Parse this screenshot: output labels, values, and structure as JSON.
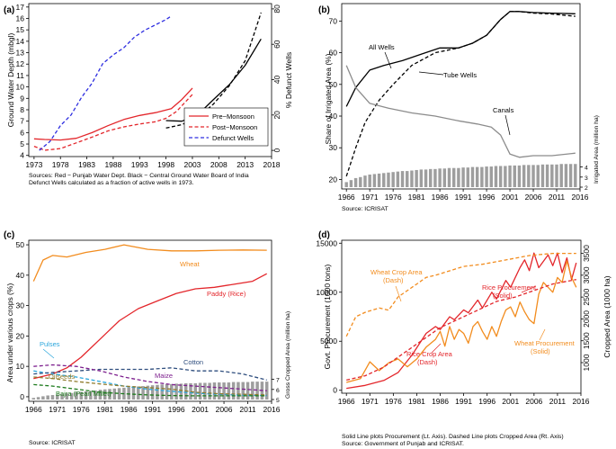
{
  "chart_data": [
    {
      "panel": "(a)",
      "type": "line",
      "xlabel": "",
      "ylabel": "Ground Water Depth (mbgl)",
      "y2label": "% Defunct Wells",
      "xticks": [
        1973,
        1978,
        1983,
        1988,
        1993,
        1998,
        2003,
        2008,
        2013,
        2018
      ],
      "yticks": [
        4,
        5,
        6,
        7,
        8,
        9,
        10,
        11,
        12,
        13,
        14,
        15,
        16,
        17
      ],
      "y2ticks": [
        0,
        20,
        40,
        60,
        80
      ],
      "xlim": [
        1972,
        2018
      ],
      "ylim": [
        3.9,
        17.3
      ],
      "y2lim": [
        -3.5,
        83
      ],
      "legend": [
        "Pre−Monsoon",
        "Post−Monsoon",
        "Defunct Wells"
      ],
      "notes": [
        "Sources: Red − Punjab Water Dept. Black − Central Ground Water Board of India",
        "Defunct Wells calculated as a fraction of active wells in 1973."
      ],
      "series": [
        {
          "name": "Pre−Monsoon",
          "axis": "left",
          "color": "#e3262b",
          "dash": "solid",
          "x": [
            1973,
            1975,
            1978,
            1981,
            1984,
            1987,
            1990,
            1993,
            1996,
            1999,
            2001,
            2003
          ],
          "y": [
            5.45,
            5.4,
            5.35,
            5.5,
            6.0,
            6.6,
            7.15,
            7.5,
            7.75,
            8.1,
            8.9,
            9.9
          ]
        },
        {
          "name": "Post−Monsoon",
          "axis": "left",
          "color": "#e3262b",
          "dash": "dashed",
          "x": [
            1973,
            1975,
            1978,
            1981,
            1984,
            1987,
            1990,
            1993,
            1996,
            1998,
            2000,
            2003
          ],
          "y": [
            4.8,
            4.45,
            4.6,
            5.1,
            5.6,
            6.15,
            6.5,
            6.75,
            6.95,
            7.25,
            7.85,
            9.35
          ]
        },
        {
          "name": "Defunct Wells",
          "axis": "right",
          "color": "#2d2de0",
          "dash": "dashed",
          "x": [
            1974,
            1976,
            1978,
            1980,
            1982,
            1984,
            1986,
            1988,
            1990,
            1992,
            1994,
            1996,
            1998,
            1999
          ],
          "y": [
            0,
            5,
            14,
            20,
            30,
            38,
            49,
            54,
            58,
            64,
            68,
            71,
            74,
            76
          ]
        },
        {
          "name": "CGWB Pre",
          "axis": "left",
          "color": "#000000",
          "dash": "solid",
          "x": [
            1998,
            2001,
            2004,
            2007,
            2010,
            2013,
            2016
          ],
          "y": [
            7.05,
            7.0,
            7.55,
            8.9,
            10.2,
            11.9,
            14.2
          ]
        },
        {
          "name": "CGWB Post",
          "axis": "left",
          "color": "#000000",
          "dash": "dashed",
          "x": [
            1998,
            2001,
            2004,
            2007,
            2010,
            2013,
            2016
          ],
          "y": [
            6.4,
            6.7,
            7.3,
            8.5,
            10.1,
            12.3,
            16.5
          ]
        }
      ]
    },
    {
      "panel": "(b)",
      "type": "line",
      "ylabel": "Share of Irrigated Area (%)",
      "y2label": "Irrigated Area (million ha)",
      "xticks": [
        1966,
        1971,
        1976,
        1981,
        1986,
        1991,
        1996,
        2001,
        2006,
        2011,
        2016
      ],
      "yticks": [
        20,
        30,
        40,
        50,
        60,
        70
      ],
      "y2ticks": [
        2,
        3,
        4
      ],
      "xlim": [
        1965,
        2016
      ],
      "ylim": [
        17,
        75.5
      ],
      "y2lim": [
        1.6,
        4.1
      ],
      "annotations": [
        "All Wells",
        "Tube Wells",
        "Canals"
      ],
      "source": "Source: ICRISAT",
      "series": [
        {
          "name": "All Wells",
          "color": "#000000",
          "dash": "solid",
          "x": [
            1966,
            1968,
            1971,
            1974,
            1978,
            1982,
            1986,
            1990,
            1993,
            1996,
            1999,
            2001,
            2003,
            2006,
            2010,
            2015
          ],
          "y": [
            43,
            49,
            54.5,
            56,
            57.5,
            59.5,
            61.5,
            61.5,
            63,
            65.5,
            70.5,
            73,
            73,
            72.7,
            72.5,
            72.3
          ]
        },
        {
          "name": "Tube Wells",
          "color": "#000000",
          "dash": "dashed",
          "x": [
            1966,
            1968,
            1970,
            1973,
            1976,
            1980,
            1985,
            1990,
            1993,
            1996,
            1999,
            2001,
            2003,
            2006,
            2010,
            2015
          ],
          "y": [
            21,
            30,
            38,
            45,
            50,
            56,
            60,
            61.5,
            63,
            65.5,
            70.5,
            73,
            73,
            72.5,
            72.2,
            71.5
          ]
        },
        {
          "name": "Canals",
          "color": "#8c8c8c",
          "dash": "solid",
          "x": [
            1966,
            1968,
            1971,
            1975,
            1980,
            1985,
            1990,
            1994,
            1997,
            1999,
            2001,
            2003,
            2006,
            2010,
            2015
          ],
          "y": [
            56,
            49,
            44,
            42.5,
            41,
            40,
            38.5,
            37.5,
            36.5,
            34,
            28,
            27,
            27.5,
            27.5,
            28.3
          ]
        },
        {
          "name": "Irrigated Area",
          "type": "bar",
          "axis": "right",
          "color": "#9e9e9e",
          "x0": 1966,
          "values": [
            2.1,
            2.3,
            2.5,
            2.6,
            2.75,
            2.85,
            2.9,
            2.95,
            3.0,
            3.05,
            3.1,
            3.15,
            3.2,
            3.2,
            3.25,
            3.3,
            3.35,
            3.35,
            3.4,
            3.4,
            3.45,
            3.45,
            3.5,
            3.5,
            3.5,
            3.55,
            3.55,
            3.6,
            3.6,
            3.6,
            3.65,
            3.65,
            3.7,
            3.7,
            3.7,
            3.75,
            3.75,
            3.75,
            3.8,
            3.8,
            3.8,
            3.8,
            3.85,
            3.85,
            3.85,
            3.85,
            3.9,
            3.9,
            3.9,
            3.9
          ]
        }
      ]
    },
    {
      "panel": "(c)",
      "type": "line",
      "ylabel": "Area under various crops (%)",
      "y2label": "Gross Cropped Area (million ha)",
      "xticks": [
        1966,
        1971,
        1976,
        1981,
        1986,
        1991,
        1996,
        2001,
        2006,
        2011,
        2016
      ],
      "yticks": [
        0,
        10,
        20,
        30,
        40,
        50
      ],
      "y2ticks": [
        5,
        6,
        7
      ],
      "xlim": [
        1965,
        2016
      ],
      "ylim": [
        -1.5,
        51.5
      ],
      "y2lim": [
        4.8,
        7.9
      ],
      "annotations": [
        "Wheat",
        "Paddy (Rice)",
        "Pulses",
        "Cotton",
        "Oilseeds",
        "Maize",
        "Bajra (Pearl Millet)"
      ],
      "source": "Source: ICRISAT",
      "series": [
        {
          "name": "Wheat",
          "color": "#f28c1e",
          "dash": "solid",
          "x": [
            1966,
            1968,
            1970,
            1973,
            1977,
            1981,
            1985,
            1990,
            1995,
            2000,
            2005,
            2010,
            2015
          ],
          "y": [
            38,
            45,
            46.5,
            46,
            47.5,
            48.5,
            50,
            48.5,
            48,
            48,
            48.2,
            48.3,
            48.2
          ]
        },
        {
          "name": "Paddy (Rice)",
          "color": "#e3262b",
          "dash": "solid",
          "x": [
            1966,
            1970,
            1973,
            1976,
            1980,
            1984,
            1988,
            1992,
            1996,
            2000,
            2004,
            2008,
            2012,
            2015
          ],
          "y": [
            6,
            7.5,
            9.5,
            13,
            19,
            25,
            29,
            31.5,
            34,
            35.5,
            36,
            37,
            38,
            40.5
          ]
        },
        {
          "name": "Pulses",
          "color": "#2ba6dc",
          "dash": "dashed",
          "x": [
            1966,
            1970,
            1975,
            1980,
            1985,
            1990,
            1995,
            2000,
            2005,
            2010,
            2015
          ],
          "y": [
            8.5,
            7.5,
            6.5,
            5,
            3.5,
            2.5,
            1.8,
            1.2,
            0.8,
            0.5,
            0.4
          ]
        },
        {
          "name": "Cotton",
          "color": "#2f4e7e",
          "dash": "dashed",
          "x": [
            1966,
            1970,
            1975,
            1980,
            1985,
            1990,
            1995,
            2000,
            2005,
            2010,
            2015
          ],
          "y": [
            7.5,
            8,
            8.5,
            9,
            9,
            9,
            9.5,
            8.5,
            8.5,
            7.5,
            5.5
          ]
        },
        {
          "name": "Oilseeds",
          "color": "#8f7b2c",
          "dash": "dashed",
          "x": [
            1966,
            1970,
            1975,
            1980,
            1985,
            1990,
            1995,
            2000,
            2005,
            2010,
            2015
          ],
          "y": [
            6.5,
            6,
            5,
            4.2,
            3.5,
            3,
            2.5,
            1.5,
            1,
            0.8,
            0.6
          ]
        },
        {
          "name": "Maize",
          "color": "#7d1f8e",
          "dash": "dashed",
          "x": [
            1966,
            1970,
            1975,
            1980,
            1985,
            1990,
            1995,
            2000,
            2005,
            2010,
            2015
          ],
          "y": [
            10,
            10.5,
            10,
            8.5,
            6.5,
            5,
            4,
            3.5,
            3,
            2.5,
            2
          ]
        },
        {
          "name": "Bajra (Pearl Millet)",
          "color": "#1c7a1c",
          "dash": "dashed",
          "x": [
            1966,
            1970,
            1975,
            1980,
            1985,
            1990,
            1995,
            2000,
            2005,
            2010,
            2015
          ],
          "y": [
            4,
            3.5,
            2.5,
            1.5,
            1,
            0.6,
            0.4,
            0.3,
            0.3,
            0.3,
            0.3
          ]
        },
        {
          "name": "Gross Cropped Area",
          "type": "bar",
          "axis": "right",
          "color": "#9e9e9e",
          "x0": 1966,
          "values": [
            5.0,
            5.1,
            5.2,
            5.3,
            5.35,
            5.4,
            5.5,
            5.55,
            5.6,
            5.7,
            5.75,
            5.8,
            5.85,
            5.9,
            6.0,
            6.05,
            6.1,
            6.15,
            6.2,
            6.25,
            6.3,
            6.35,
            6.4,
            6.45,
            6.5,
            6.55,
            6.6,
            6.65,
            6.7,
            6.7,
            6.75,
            6.75,
            6.8,
            6.8,
            6.8,
            6.85,
            6.85,
            6.85,
            6.9,
            6.9,
            6.9,
            6.9,
            6.95,
            6.95,
            6.95,
            6.95,
            7.0,
            7.0,
            7.0,
            7.0
          ]
        }
      ]
    },
    {
      "panel": "(d)",
      "type": "line",
      "ylabel": "Govt. Procurement (1000 tons)",
      "y2label": "Cropped Area (1000 ha)",
      "xticks": [
        1966,
        1971,
        1976,
        1981,
        1986,
        1991,
        1996,
        2001,
        2006,
        2011,
        2016
      ],
      "yticks": [
        0,
        5000,
        10000,
        15000
      ],
      "y2ticks": [
        1000,
        1500,
        2000,
        2500,
        3000,
        3500
      ],
      "xlim": [
        1965,
        2016
      ],
      "ylim": [
        -300,
        15300
      ],
      "y2lim": [
        300,
        3800
      ],
      "annotations": [
        "Wheat Crop Area\n(Dash)",
        "Rice Procurement\n(Solid)",
        "Rice Crop Area\n(Dash)",
        "Wheat Procurement\n(Solid)"
      ],
      "notes": [
        "Solid Line plots Procurement (Lt. Axis). Dashed Line plots Cropped Area (Rt. Axis)",
        "Source: Government of Punjab and ICRISAT."
      ],
      "series": [
        {
          "name": "Rice Procurement",
          "axis": "left",
          "color": "#e3262b",
          "dash": "solid",
          "x": [
            1966,
            1970,
            1974,
            1977,
            1980,
            1983,
            1985,
            1986,
            1988,
            1989,
            1991,
            1992,
            1994,
            1995,
            1997,
            1998,
            2000,
            2001,
            2003,
            2004,
            2005,
            2006,
            2007,
            2009,
            2010,
            2011,
            2012,
            2013,
            2014,
            2015
          ],
          "y": [
            200,
            500,
            1000,
            1800,
            3600,
            5800,
            6500,
            6200,
            7500,
            7200,
            8200,
            7900,
            9200,
            8400,
            10000,
            9300,
            11200,
            10500,
            12500,
            13300,
            12200,
            14000,
            12500,
            13800,
            12700,
            14000,
            12000,
            13500,
            11300,
            13000
          ]
        },
        {
          "name": "Wheat Procurement",
          "axis": "left",
          "color": "#f28c1e",
          "dash": "solid",
          "x": [
            1966,
            1969,
            1971,
            1973,
            1975,
            1977,
            1979,
            1981,
            1983,
            1985,
            1986,
            1987,
            1988,
            1989,
            1990,
            1991,
            1992,
            1993,
            1994,
            1995,
            1996,
            1997,
            1998,
            1999,
            2000,
            2001,
            2002,
            2003,
            2004,
            2005,
            2006,
            2007,
            2008,
            2009,
            2010,
            2011,
            2012,
            2013,
            2014,
            2015
          ],
          "y": [
            800,
            1200,
            2900,
            2000,
            2800,
            3200,
            2400,
            3200,
            4400,
            5200,
            6000,
            4500,
            6500,
            5200,
            6200,
            5800,
            4800,
            6500,
            7000,
            6000,
            5200,
            6500,
            5500,
            7000,
            8200,
            8500,
            7500,
            9000,
            8000,
            7200,
            6800,
            9800,
            11000,
            10500,
            10000,
            11500,
            11000,
            13200,
            11500,
            10500
          ]
        },
        {
          "name": "Wheat Crop Area",
          "axis": "right",
          "color": "#f28c1e",
          "dash": "dashed",
          "x": [
            1966,
            1968,
            1970,
            1973,
            1975,
            1977,
            1979,
            1981,
            1983,
            1985,
            1988,
            1991,
            1995,
            2000,
            2005,
            2010,
            2015
          ],
          "y": [
            1600,
            2050,
            2150,
            2250,
            2200,
            2500,
            2650,
            2800,
            2950,
            3000,
            3100,
            3200,
            3250,
            3350,
            3450,
            3500,
            3500
          ]
        },
        {
          "name": "Rice Crop Area",
          "axis": "right",
          "color": "#e3262b",
          "dash": "dashed",
          "x": [
            1966,
            1970,
            1974,
            1978,
            1982,
            1986,
            1990,
            1994,
            1998,
            2002,
            2006,
            2010,
            2015
          ],
          "y": [
            600,
            700,
            900,
            1200,
            1500,
            1800,
            2000,
            2200,
            2400,
            2500,
            2650,
            2800,
            2900
          ]
        }
      ]
    }
  ]
}
